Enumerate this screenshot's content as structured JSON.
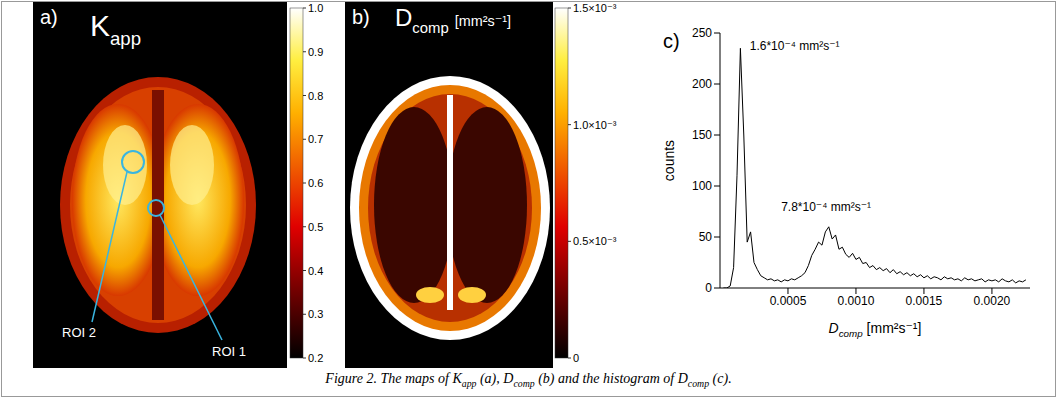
{
  "caption": [
    {
      "t": "Figure 2. The maps of "
    },
    {
      "t": "K",
      "sub": "app"
    },
    {
      "t": " (a), "
    },
    {
      "t": "D",
      "sub": "comp"
    },
    {
      "t": " (b) and the histogram of "
    },
    {
      "t": "D",
      "sub": "comp"
    },
    {
      "t": " (c)."
    }
  ],
  "panels": [
    {
      "letter": "a)",
      "title": {
        "t": "K",
        "sub": "app"
      },
      "colorbar": {
        "range": [
          0.2,
          1.0
        ],
        "ticks": [
          {
            "value": 1,
            "label": "1.0"
          },
          0.9,
          0.8,
          0.7,
          0.6,
          0.5,
          0.4,
          0.3,
          0.2
        ]
      },
      "rois": [
        "ROI 2",
        "ROI 1"
      ]
    },
    {
      "letter": "b)",
      "title": {
        "t": "D",
        "sub": "comp",
        "unit": "[mm²s⁻¹]"
      },
      "colorbar": {
        "range": [
          0,
          0.0015
        ],
        "ticks": [
          0,
          {
            "value": 0.0005,
            "label": "0.5×10⁻³"
          },
          {
            "value": 0.001,
            "label": "1.0×10⁻³"
          },
          {
            "value": 0.0015,
            "label": "1.5×10⁻³"
          }
        ]
      }
    },
    {
      "letter": "c)"
    }
  ],
  "chart_data": {
    "type": "line",
    "x_label": {
      "t": "D",
      "sub": "comp",
      "unit": "[mm²s⁻¹]"
    },
    "y_label": "counts",
    "x": [
      2.5e-05,
      5e-05,
      7.5e-05,
      0.0001,
      0.000125,
      0.00015,
      0.000175,
      0.0002,
      0.000225,
      0.00025,
      0.000275,
      0.0003,
      0.000325,
      0.00035,
      0.000375,
      0.0004,
      0.000425,
      0.00045,
      0.000475,
      0.0005,
      0.000525,
      0.00055,
      0.000575,
      0.0006,
      0.000625,
      0.00065,
      0.000675,
      0.0007,
      0.000725,
      0.00075,
      0.000775,
      0.0008,
      0.000825,
      0.00085,
      0.000875,
      0.0009,
      0.000925,
      0.00095,
      0.000975,
      0.001,
      0.001025,
      0.00105,
      0.001075,
      0.0011,
      0.001125,
      0.00115,
      0.001175,
      0.0012,
      0.001225,
      0.00125,
      0.001275,
      0.0013,
      0.001325,
      0.00135,
      0.001375,
      0.0014,
      0.001425,
      0.00145,
      0.001475,
      0.0015,
      0.001525,
      0.00155,
      0.001575,
      0.0016,
      0.001625,
      0.00165,
      0.001675,
      0.0017,
      0.001725,
      0.00175,
      0.001775,
      0.0018,
      0.001825,
      0.00185,
      0.001875,
      0.0019,
      0.001925,
      0.00195,
      0.001975,
      0.002,
      0.002025,
      0.00205,
      0.002075,
      0.0021,
      0.002125,
      0.00215,
      0.002175,
      0.0022,
      0.002225,
      0.00225
    ],
    "values": [
      0,
      0,
      2,
      20,
      110,
      235,
      150,
      45,
      55,
      25,
      18,
      12,
      10,
      8,
      9,
      7,
      8,
      6,
      8,
      7,
      9,
      8,
      10,
      12,
      15,
      22,
      32,
      38,
      45,
      42,
      55,
      60,
      48,
      52,
      38,
      40,
      33,
      30,
      34,
      28,
      30,
      24,
      25,
      20,
      22,
      18,
      20,
      17,
      19,
      15,
      18,
      14,
      16,
      13,
      15,
      12,
      14,
      11,
      13,
      10,
      12,
      9,
      11,
      10,
      8,
      11,
      9,
      10,
      8,
      9,
      7,
      10,
      8,
      9,
      7,
      8,
      9,
      6,
      8,
      7,
      8,
      6,
      9,
      7,
      6,
      8,
      5,
      7,
      6,
      8
    ],
    "color": "#000000",
    "xlim": [
      0,
      0.00228
    ],
    "ylim": [
      0,
      250
    ],
    "xticks": [
      0.0005,
      {
        "value": 0.001,
        "label": "0.0010"
      },
      0.0015,
      {
        "value": 0.002,
        "label": "0.0020"
      }
    ],
    "yticks": [
      0,
      50,
      100,
      150,
      200,
      250
    ],
    "annotations": [
      {
        "text": "1.6*10⁻⁴ mm²s⁻¹",
        "x": 0.00016,
        "y": 235
      },
      {
        "text": "7.8*10⁻⁴ mm²s⁻¹",
        "x": 0.00078,
        "y": 60
      }
    ]
  }
}
